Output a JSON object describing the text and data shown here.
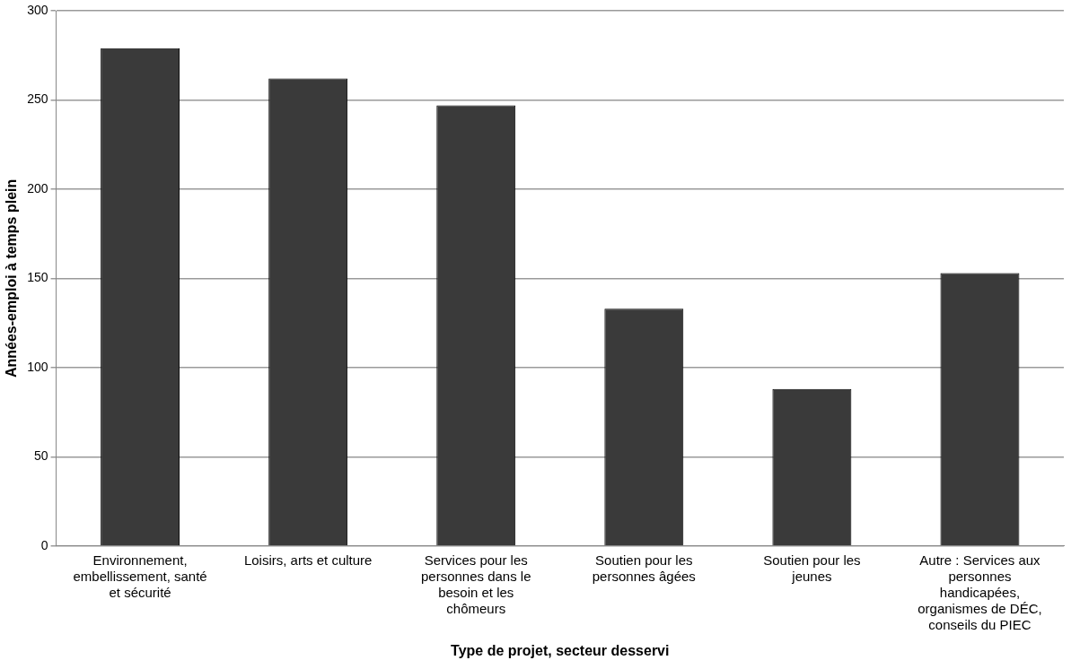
{
  "chart_data": {
    "type": "bar",
    "xlabel": "Type de projet, secteur desservi",
    "ylabel": "Années-emploi à temps plein",
    "categories": [
      "Environnement, embellissement, santé et sécurité",
      "Loisirs, arts et culture",
      "Services pour les personnes dans le besoin et les chômeurs",
      "Soutien pour les personnes âgées",
      "Soutien pour les jeunes",
      "Autre : Services aux personnes handicapées, organismes de DÉC, conseils du PIEC"
    ],
    "values": [
      279,
      262,
      247,
      133,
      88,
      153
    ],
    "color": "#3a3a3a",
    "ylim": [
      0,
      300
    ],
    "yticks": [
      0,
      50,
      100,
      150,
      200,
      250,
      300
    ],
    "grid": "y",
    "legend": false
  }
}
